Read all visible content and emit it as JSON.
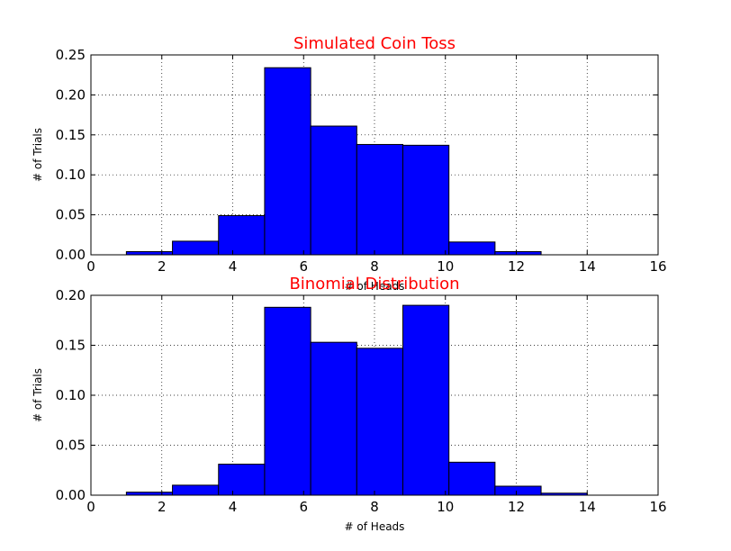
{
  "chart_data": [
    {
      "type": "bar",
      "title": "Simulated Coin Toss",
      "xlabel": "# of Heads",
      "ylabel": "# of Trials",
      "xlim": [
        0,
        16
      ],
      "ylim": [
        0,
        0.25
      ],
      "xticks": [
        "0",
        "2",
        "4",
        "6",
        "8",
        "10",
        "12",
        "14",
        "16"
      ],
      "yticks": [
        "0.00",
        "0.05",
        "0.10",
        "0.15",
        "0.20",
        "0.25"
      ],
      "grid": true,
      "title_color": "#ff0000",
      "bar_color": "#0000ff",
      "bins": [
        {
          "x0": 1.0,
          "x1": 2.3,
          "value": 0.004
        },
        {
          "x0": 2.3,
          "x1": 3.6,
          "value": 0.017
        },
        {
          "x0": 3.6,
          "x1": 4.9,
          "value": 0.049
        },
        {
          "x0": 4.9,
          "x1": 6.2,
          "value": 0.234
        },
        {
          "x0": 6.2,
          "x1": 7.5,
          "value": 0.161
        },
        {
          "x0": 7.5,
          "x1": 8.8,
          "value": 0.138
        },
        {
          "x0": 8.8,
          "x1": 10.1,
          "value": 0.137
        },
        {
          "x0": 10.1,
          "x1": 11.4,
          "value": 0.016
        },
        {
          "x0": 11.4,
          "x1": 12.7,
          "value": 0.004
        }
      ]
    },
    {
      "type": "bar",
      "title": "Binomial Distribution",
      "xlabel": "# of Heads",
      "ylabel": "# of Trials",
      "xlim": [
        0,
        16
      ],
      "ylim": [
        0,
        0.2
      ],
      "xticks": [
        "0",
        "2",
        "4",
        "6",
        "8",
        "10",
        "12",
        "14",
        "16"
      ],
      "yticks": [
        "0.00",
        "0.05",
        "0.10",
        "0.15",
        "0.20"
      ],
      "grid": true,
      "title_color": "#ff0000",
      "bar_color": "#0000ff",
      "bins": [
        {
          "x0": 1.0,
          "x1": 2.3,
          "value": 0.003
        },
        {
          "x0": 2.3,
          "x1": 3.6,
          "value": 0.01
        },
        {
          "x0": 3.6,
          "x1": 4.9,
          "value": 0.031
        },
        {
          "x0": 4.9,
          "x1": 6.2,
          "value": 0.188
        },
        {
          "x0": 6.2,
          "x1": 7.5,
          "value": 0.153
        },
        {
          "x0": 7.5,
          "x1": 8.8,
          "value": 0.147
        },
        {
          "x0": 8.8,
          "x1": 10.1,
          "value": 0.19
        },
        {
          "x0": 10.1,
          "x1": 11.4,
          "value": 0.033
        },
        {
          "x0": 11.4,
          "x1": 12.7,
          "value": 0.009
        },
        {
          "x0": 12.7,
          "x1": 14.0,
          "value": 0.002
        }
      ]
    }
  ]
}
